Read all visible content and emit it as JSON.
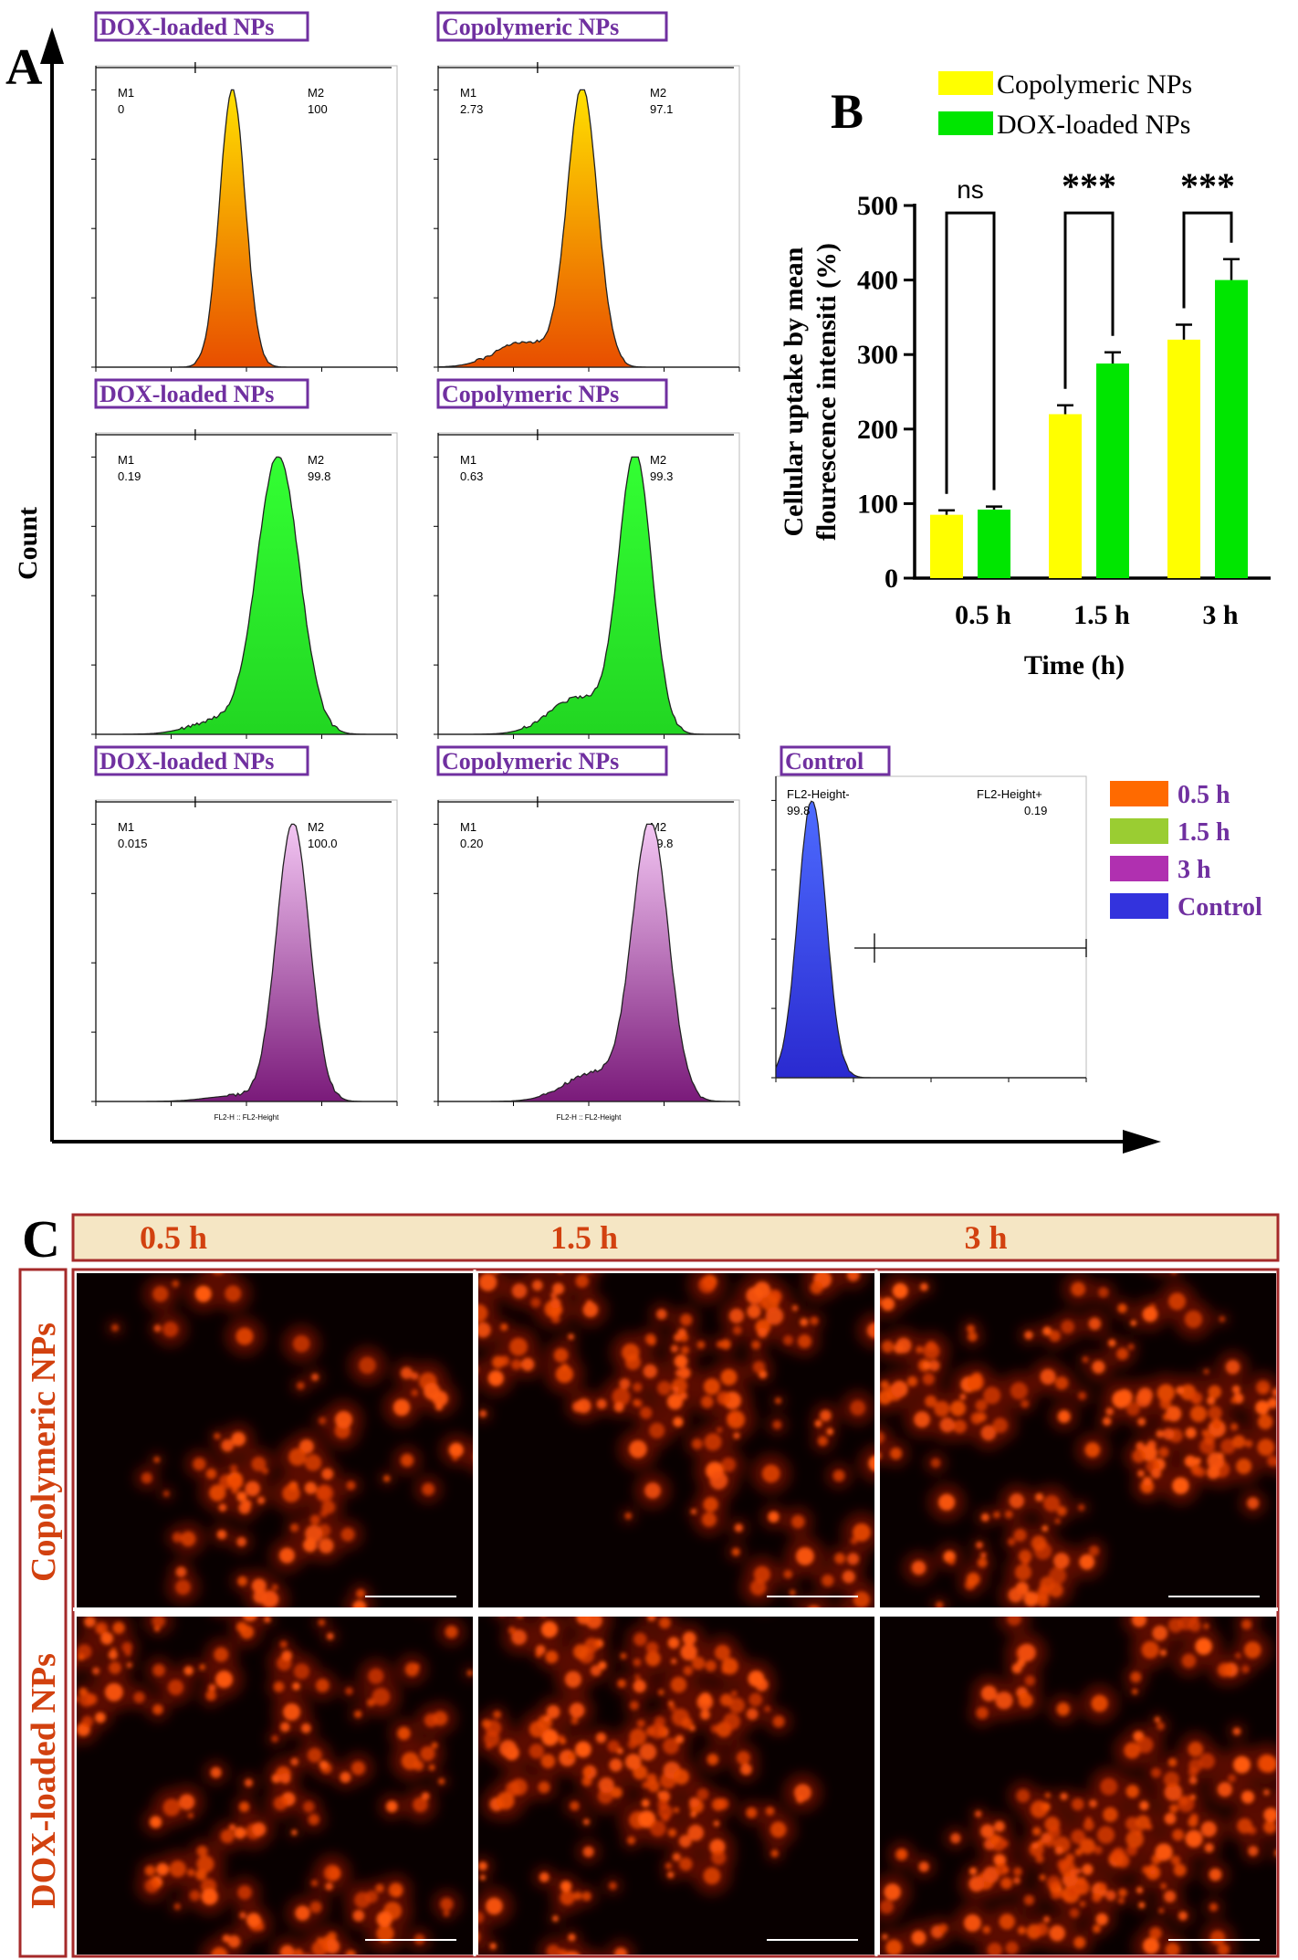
{
  "panel_labels": {
    "a": "A",
    "b": "B",
    "c": "C"
  },
  "figure_a": {
    "y_axis_label": "Count",
    "x_axis_label": "FL2-H :: FL2-Height",
    "rows": [
      {
        "time": "0.5 h",
        "color_key": "orange",
        "panels": [
          {
            "title": "DOX-loaded NPs",
            "m1_label": "M1",
            "m1_value": "0",
            "m2_label": "M2",
            "m2_value": "100",
            "peak_log": 1.8,
            "width": 0.17,
            "shoulder": 0,
            "ymax_tick": 800
          },
          {
            "title": "Copolymeric NPs",
            "m1_label": "M1",
            "m1_value": "2.73",
            "m2_label": "M2",
            "m2_value": "97.1",
            "peak_log": 1.9,
            "width": 0.2,
            "shoulder": 0.09,
            "ymax_tick": 800
          }
        ]
      },
      {
        "time": "1.5 h",
        "color_key": "green",
        "panels": [
          {
            "title": "DOX-loaded NPs",
            "m1_label": "M1",
            "m1_value": "0.19",
            "m2_label": "M2",
            "m2_value": "99.8",
            "peak_log": 2.4,
            "width": 0.28,
            "shoulder": 0.05,
            "ymax_tick": 500
          },
          {
            "title": "Copolymeric NPs",
            "m1_label": "M1",
            "m1_value": "0.63",
            "m2_label": "M2",
            "m2_value": "99.3",
            "peak_log": 2.6,
            "width": 0.22,
            "shoulder": 0.13,
            "ymax_tick": 600
          }
        ]
      },
      {
        "time": "3 h",
        "color_key": "purple",
        "panels": [
          {
            "title": "DOX-loaded NPs",
            "m1_label": "M1",
            "m1_value": "0.015",
            "m2_label": "M2",
            "m2_value": "100.0",
            "peak_log": 2.6,
            "width": 0.22,
            "shoulder": 0.02,
            "ymax_tick": 600
          },
          {
            "title": "Copolymeric NPs",
            "m1_label": "M1",
            "m1_value": "0.20",
            "m2_label": "M2",
            "m2_value": "99.8",
            "peak_log": 2.8,
            "width": 0.24,
            "shoulder": 0.1,
            "ymax_tick": 800
          }
        ]
      }
    ],
    "control": {
      "title": "Control",
      "neg_label": "FL2-Height-",
      "neg_value": "99.8",
      "pos_label": "FL2-Height+",
      "pos_value": "0.19",
      "peak_log": 0.45,
      "width": 0.18,
      "ymax_tick": 300
    },
    "legend": [
      {
        "label": "0.5 h",
        "color": "#ff6a00"
      },
      {
        "label": "1.5 h",
        "color": "#9acd32"
      },
      {
        "label": "3 h",
        "color": "#b030b0"
      },
      {
        "label": "Control",
        "color": "#3333dd"
      }
    ],
    "colors": {
      "orange": {
        "top": "#ffe000",
        "bottom": "#e84e00"
      },
      "green": {
        "top": "#33ff33",
        "bottom": "#22d622"
      },
      "purple": {
        "top": "#f3c6f3",
        "bottom": "#7a1a7a"
      },
      "control": {
        "top": "#4d6bff",
        "bottom": "#2a2ad0"
      },
      "title_border": "#7030a0",
      "title_text": "#7030a0"
    }
  },
  "chart_data": {
    "type": "bar",
    "categories": [
      "0.5 h",
      "1.5 h",
      "3 h"
    ],
    "series": [
      {
        "name": "Copolymeric NPs",
        "color": "#ffff00",
        "values": [
          85,
          220,
          320
        ],
        "errors": [
          6,
          12,
          20
        ]
      },
      {
        "name": "DOX-loaded NPs",
        "color": "#00e600",
        "values": [
          92,
          288,
          400
        ],
        "errors": [
          4,
          15,
          28
        ]
      }
    ],
    "significance": [
      "ns",
      "***",
      "***"
    ],
    "xlabel": "Time (h)",
    "ylabel_line1": "Cellular uptake by mean",
    "ylabel_line2": "flourescence intensiti (%)",
    "ylim": [
      0,
      500
    ],
    "yticks": [
      0,
      100,
      200,
      300,
      400,
      500
    ],
    "legend_position": "top"
  },
  "figure_c": {
    "columns": [
      "0.5 h",
      "1.5 h",
      "3 h"
    ],
    "rows": [
      "Copolymeric NPs",
      "DOX-loaded NPs"
    ],
    "border_color": "#a52a2a",
    "header_bg": "#f5e6c4",
    "header_text_color": "#d2410f"
  }
}
